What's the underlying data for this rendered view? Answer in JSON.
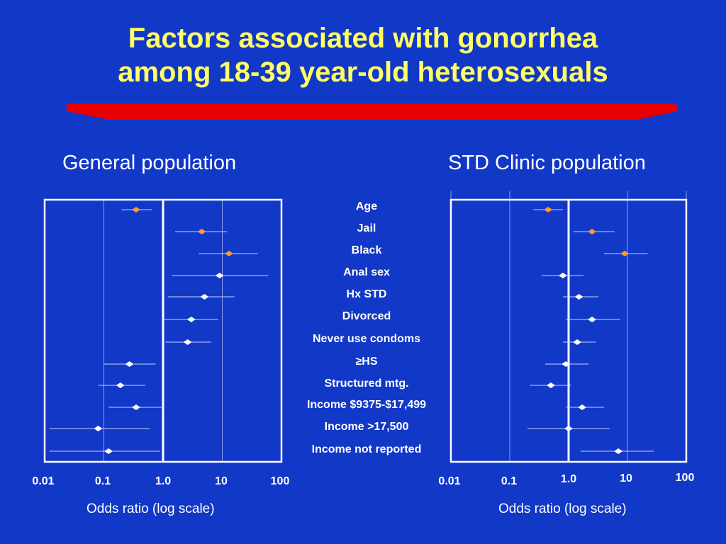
{
  "title": {
    "line1": "Factors associated with gonorrhea",
    "line2": "among 18-39 year-old heterosexuals"
  },
  "colors": {
    "background": "#1238c8",
    "title": "#ffff66",
    "stripe": "#e60000",
    "highlight_marker": "#ff9933",
    "marker": "#ffffff"
  },
  "chart_data": [
    {
      "type": "forest",
      "title": "General population",
      "xlabel": "Odds ratio (log scale)",
      "xscale": "log",
      "xlim": [
        0.01,
        100
      ],
      "xticks": [
        "0.01",
        "0.1",
        "1.0",
        "10",
        "100"
      ],
      "reference_line": 1.0,
      "categories": [
        "Age",
        "Jail",
        "Black",
        "Anal sex",
        "Hx STD",
        "Divorced",
        "Never use condoms",
        "≥HS",
        "Structured mtg.",
        "Income $9375-$17,499",
        "Income >17,500",
        "Income not reported"
      ],
      "highlighted": [
        "Age",
        "Jail",
        "Black"
      ],
      "points": [
        {
          "or": 0.35,
          "lo": 0.2,
          "hi": 0.65
        },
        {
          "or": 4.5,
          "lo": 1.6,
          "hi": 12
        },
        {
          "or": 13,
          "lo": 4,
          "hi": 40
        },
        {
          "or": 9,
          "lo": 1.4,
          "hi": 60
        },
        {
          "or": 5,
          "lo": 1.2,
          "hi": 16
        },
        {
          "or": 3,
          "lo": 1.0,
          "hi": 8.5
        },
        {
          "or": 2.6,
          "lo": 1.1,
          "hi": 6.5
        },
        {
          "or": 0.27,
          "lo": 0.1,
          "hi": 0.75
        },
        {
          "or": 0.19,
          "lo": 0.08,
          "hi": 0.5
        },
        {
          "or": 0.35,
          "lo": 0.12,
          "hi": 1.0
        },
        {
          "or": 0.08,
          "lo": 0.012,
          "hi": 0.6
        },
        {
          "or": 0.12,
          "lo": 0.012,
          "hi": 0.9
        }
      ]
    },
    {
      "type": "forest",
      "title": "STD Clinic population",
      "xlabel": "Odds ratio (log scale)",
      "xscale": "log",
      "xlim": [
        0.01,
        100
      ],
      "xticks": [
        "0.01",
        "0.1",
        "1.0",
        "10",
        "100"
      ],
      "reference_line": 1.0,
      "categories": [
        "Age",
        "Jail",
        "Black",
        "Anal sex",
        "Hx STD",
        "Divorced",
        "Never use condoms",
        "≥HS",
        "Structured mtg.",
        "Income $9375-$17,499",
        "Income >17,500",
        "Income not reported"
      ],
      "highlighted": [
        "Age",
        "Jail",
        "Black"
      ],
      "points": [
        {
          "or": 0.45,
          "lo": 0.25,
          "hi": 0.8
        },
        {
          "or": 2.5,
          "lo": 1.2,
          "hi": 6
        },
        {
          "or": 9,
          "lo": 4,
          "hi": 22
        },
        {
          "or": 0.8,
          "lo": 0.35,
          "hi": 1.8
        },
        {
          "or": 1.5,
          "lo": 0.8,
          "hi": 3.2
        },
        {
          "or": 2.5,
          "lo": 0.9,
          "hi": 7.5
        },
        {
          "or": 1.4,
          "lo": 0.8,
          "hi": 2.9
        },
        {
          "or": 0.9,
          "lo": 0.4,
          "hi": 2.2
        },
        {
          "or": 0.5,
          "lo": 0.22,
          "hi": 1.1
        },
        {
          "or": 1.7,
          "lo": 0.9,
          "hi": 4
        },
        {
          "or": 1.0,
          "lo": 0.2,
          "hi": 5
        },
        {
          "or": 7,
          "lo": 1.6,
          "hi": 28
        }
      ]
    }
  ]
}
